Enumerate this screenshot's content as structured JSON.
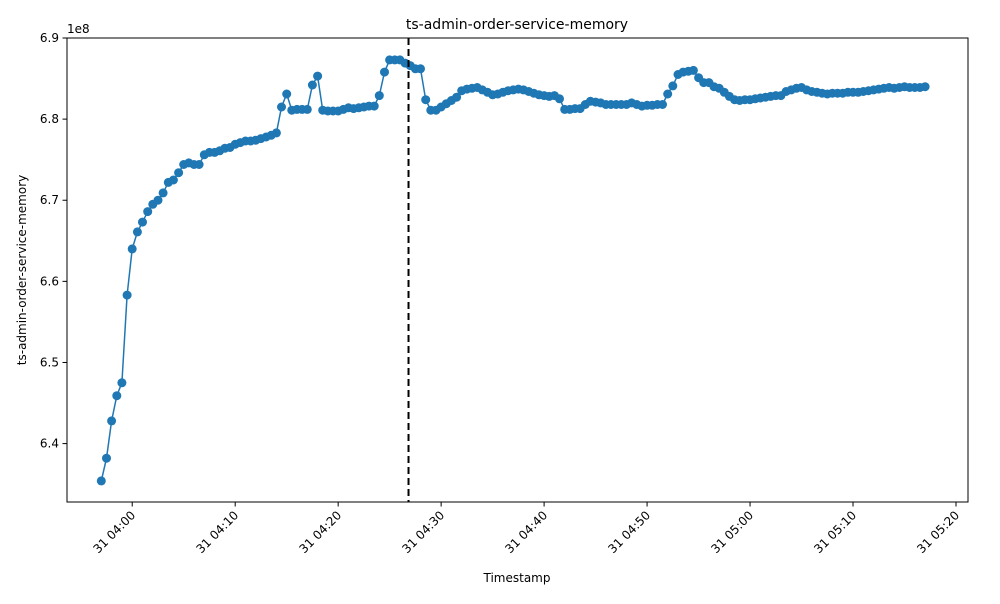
{
  "chart_data": {
    "type": "line",
    "title": "ts-admin-order-service-memory",
    "xlabel": "Timestamp",
    "ylabel": "ts-admin-order-service-memory",
    "y_multiplier_label": "1e8",
    "y_multiplier": 100000000,
    "x_date_prefix": "31 ",
    "ylim": [
      6.328,
      6.9
    ],
    "xlim": [
      "03:53:40",
      "05:21:10"
    ],
    "y_ticks": [
      6.4,
      6.5,
      6.6,
      6.7,
      6.8,
      6.9
    ],
    "x_ticks": [
      "04:00",
      "04:10",
      "04:20",
      "04:30",
      "04:40",
      "04:50",
      "05:00",
      "05:10",
      "05:20"
    ],
    "vline": {
      "x": "04:26:50",
      "style": "dashed",
      "color": "#000000"
    },
    "grid": false,
    "legend": "none",
    "series": [
      {
        "color": "#1f77b4",
        "marker": "o",
        "x": [
          "03:57:00",
          "03:57:30",
          "03:58:00",
          "03:58:30",
          "03:59:00",
          "03:59:30",
          "04:00:00",
          "04:00:30",
          "04:01:00",
          "04:01:30",
          "04:02:00",
          "04:02:30",
          "04:03:00",
          "04:03:30",
          "04:04:00",
          "04:04:30",
          "04:05:00",
          "04:05:30",
          "04:06:00",
          "04:06:30",
          "04:07:00",
          "04:07:30",
          "04:08:00",
          "04:08:30",
          "04:09:00",
          "04:09:30",
          "04:10:00",
          "04:10:30",
          "04:11:00",
          "04:11:30",
          "04:12:00",
          "04:12:30",
          "04:13:00",
          "04:13:30",
          "04:14:00",
          "04:14:30",
          "04:15:00",
          "04:15:30",
          "04:16:00",
          "04:16:30",
          "04:17:00",
          "04:17:30",
          "04:18:00",
          "04:18:30",
          "04:19:00",
          "04:19:30",
          "04:20:00",
          "04:20:30",
          "04:21:00",
          "04:21:30",
          "04:22:00",
          "04:22:30",
          "04:23:00",
          "04:23:30",
          "04:24:00",
          "04:24:30",
          "04:25:00",
          "04:25:30",
          "04:26:00",
          "04:26:30",
          "04:27:00",
          "04:27:30",
          "04:28:00",
          "04:28:30",
          "04:29:00",
          "04:29:30",
          "04:30:00",
          "04:30:30",
          "04:31:00",
          "04:31:30",
          "04:32:00",
          "04:32:30",
          "04:33:00",
          "04:33:30",
          "04:34:00",
          "04:34:30",
          "04:35:00",
          "04:35:30",
          "04:36:00",
          "04:36:30",
          "04:37:00",
          "04:37:30",
          "04:38:00",
          "04:38:30",
          "04:39:00",
          "04:39:30",
          "04:40:00",
          "04:40:30",
          "04:41:00",
          "04:41:30",
          "04:42:00",
          "04:42:30",
          "04:43:00",
          "04:43:30",
          "04:44:00",
          "04:44:30",
          "04:45:00",
          "04:45:30",
          "04:46:00",
          "04:46:30",
          "04:47:00",
          "04:47:30",
          "04:48:00",
          "04:48:30",
          "04:49:00",
          "04:49:30",
          "04:50:00",
          "04:50:30",
          "04:51:00",
          "04:51:30",
          "04:52:00",
          "04:52:30",
          "04:53:00",
          "04:53:30",
          "04:54:00",
          "04:54:30",
          "04:55:00",
          "04:55:30",
          "04:56:00",
          "04:56:30",
          "04:57:00",
          "04:57:30",
          "04:58:00",
          "04:58:30",
          "04:59:00",
          "04:59:30",
          "05:00:00",
          "05:00:30",
          "05:01:00",
          "05:01:30",
          "05:02:00",
          "05:02:30",
          "05:03:00",
          "05:03:30",
          "05:04:00",
          "05:04:30",
          "05:05:00",
          "05:05:30",
          "05:06:00",
          "05:06:30",
          "05:07:00",
          "05:07:30",
          "05:08:00",
          "05:08:30",
          "05:09:00",
          "05:09:30",
          "05:10:00",
          "05:10:30",
          "05:11:00",
          "05:11:30",
          "05:12:00",
          "05:12:30",
          "05:13:00",
          "05:13:30",
          "05:14:00",
          "05:14:30",
          "05:15:00",
          "05:15:30",
          "05:16:00",
          "05:16:30",
          "05:17:00"
        ],
        "y": [
          6.354,
          6.382,
          6.428,
          6.459,
          6.475,
          6.583,
          6.64,
          6.661,
          6.673,
          6.686,
          6.695,
          6.7,
          6.709,
          6.722,
          6.725,
          6.734,
          6.744,
          6.746,
          6.744,
          6.744,
          6.756,
          6.759,
          6.759,
          6.761,
          6.764,
          6.765,
          6.769,
          6.771,
          6.773,
          6.773,
          6.774,
          6.776,
          6.778,
          6.78,
          6.783,
          6.815,
          6.831,
          6.811,
          6.812,
          6.812,
          6.812,
          6.842,
          6.853,
          6.811,
          6.81,
          6.81,
          6.81,
          6.812,
          6.814,
          6.813,
          6.814,
          6.815,
          6.816,
          6.816,
          6.829,
          6.858,
          6.873,
          6.873,
          6.873,
          6.869,
          6.866,
          6.862,
          6.862,
          6.824,
          6.811,
          6.811,
          6.815,
          6.819,
          6.823,
          6.827,
          6.835,
          6.837,
          6.838,
          6.839,
          6.836,
          6.833,
          6.83,
          6.831,
          6.833,
          6.835,
          6.836,
          6.837,
          6.836,
          6.834,
          6.832,
          6.83,
          6.829,
          6.828,
          6.829,
          6.825,
          6.812,
          6.812,
          6.813,
          6.813,
          6.818,
          6.822,
          6.821,
          6.82,
          6.818,
          6.818,
          6.818,
          6.818,
          6.818,
          6.82,
          6.818,
          6.816,
          6.817,
          6.817,
          6.818,
          6.818,
          6.831,
          6.841,
          6.855,
          6.858,
          6.859,
          6.86,
          6.851,
          6.845,
          6.845,
          6.84,
          6.838,
          6.833,
          6.828,
          6.824,
          6.823,
          6.824,
          6.824,
          6.825,
          6.826,
          6.827,
          6.828,
          6.829,
          6.829,
          6.834,
          6.836,
          6.838,
          6.839,
          6.836,
          6.834,
          6.833,
          6.832,
          6.831,
          6.832,
          6.832,
          6.832,
          6.833,
          6.833,
          6.833,
          6.834,
          6.835,
          6.836,
          6.837,
          6.838,
          6.839,
          6.838,
          6.839,
          6.84,
          6.839,
          6.839,
          6.839,
          6.84
        ]
      }
    ]
  }
}
